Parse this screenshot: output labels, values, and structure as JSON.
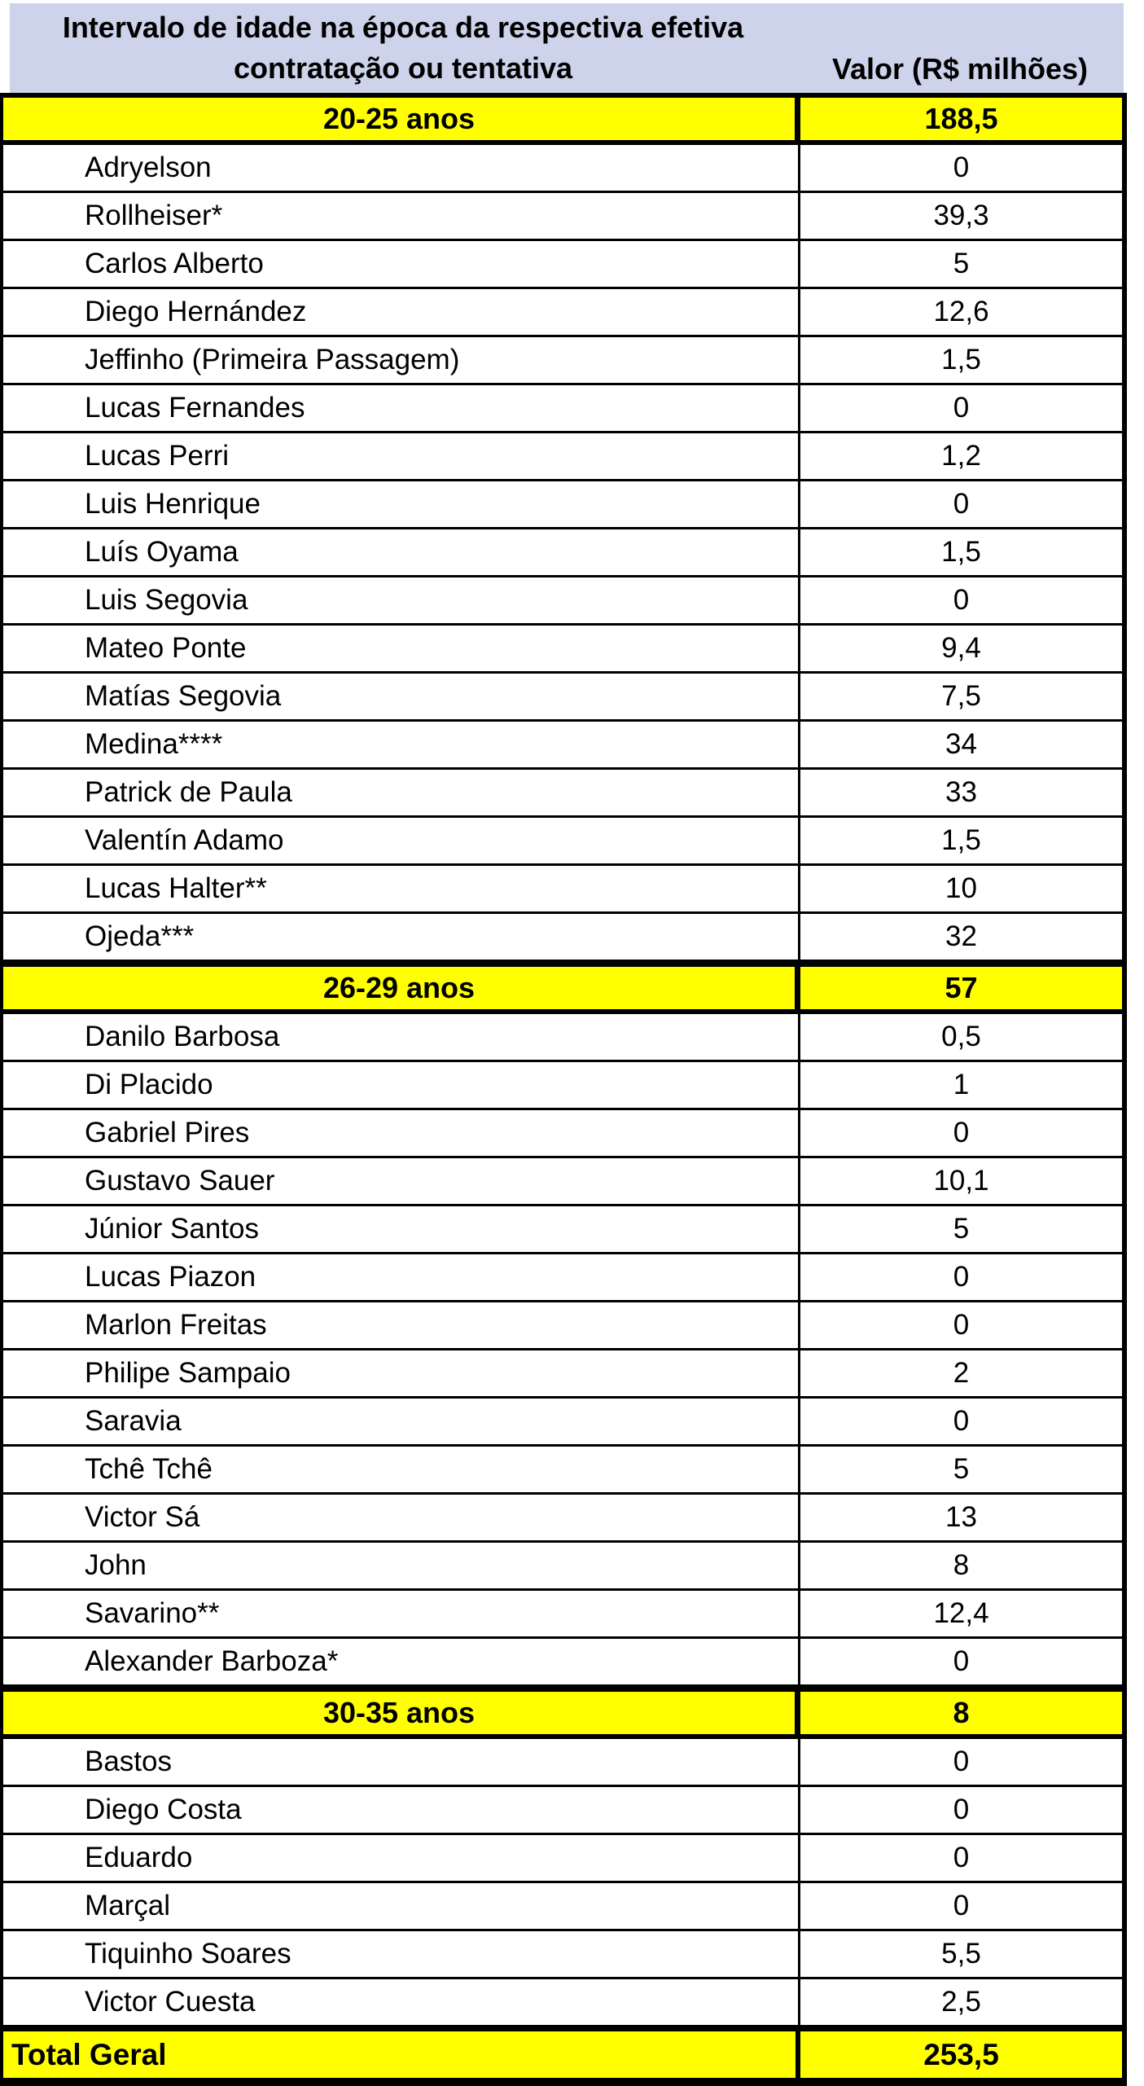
{
  "colors": {
    "header_bg": "#ccd3ea",
    "highlight_bg": "#ffff00",
    "row_bg": "#ffffff",
    "border": "#000000",
    "text": "#000000"
  },
  "chart_data": {
    "type": "table",
    "title": "",
    "columns": [
      "Intervalo de idade na época da respectiva efetiva contratação ou tentativa",
      "Valor (R$ milhões)"
    ],
    "sections": [
      {
        "label": "20-25 anos",
        "total": "188,5",
        "players": [
          {
            "name": "Adryelson",
            "value": "0"
          },
          {
            "name": "Rollheiser*",
            "value": "39,3"
          },
          {
            "name": "Carlos Alberto",
            "value": "5"
          },
          {
            "name": "Diego Hernández",
            "value": "12,6"
          },
          {
            "name": "Jeffinho (Primeira Passagem)",
            "value": "1,5"
          },
          {
            "name": "Lucas Fernandes",
            "value": "0"
          },
          {
            "name": "Lucas Perri",
            "value": "1,2"
          },
          {
            "name": "Luis Henrique",
            "value": "0"
          },
          {
            "name": "Luís Oyama",
            "value": "1,5"
          },
          {
            "name": "Luis Segovia",
            "value": "0"
          },
          {
            "name": "Mateo Ponte",
            "value": "9,4"
          },
          {
            "name": "Matías Segovia",
            "value": "7,5"
          },
          {
            "name": "Medina****",
            "value": "34"
          },
          {
            "name": "Patrick de Paula",
            "value": "33"
          },
          {
            "name": "Valentín Adamo",
            "value": "1,5"
          },
          {
            "name": "Lucas Halter**",
            "value": "10"
          },
          {
            "name": "Ojeda***",
            "value": "32"
          }
        ]
      },
      {
        "label": "26-29 anos",
        "total": "57",
        "players": [
          {
            "name": "Danilo Barbosa",
            "value": "0,5"
          },
          {
            "name": "Di Placido",
            "value": "1"
          },
          {
            "name": "Gabriel Pires",
            "value": "0"
          },
          {
            "name": "Gustavo Sauer",
            "value": "10,1"
          },
          {
            "name": "Júnior Santos",
            "value": "5"
          },
          {
            "name": "Lucas Piazon",
            "value": "0"
          },
          {
            "name": "Marlon Freitas",
            "value": "0"
          },
          {
            "name": "Philipe Sampaio",
            "value": "2"
          },
          {
            "name": "Saravia",
            "value": "0"
          },
          {
            "name": "Tchê Tchê",
            "value": "5"
          },
          {
            "name": "Victor Sá",
            "value": "13"
          },
          {
            "name": "John",
            "value": "8"
          },
          {
            "name": "Savarino**",
            "value": "12,4"
          },
          {
            "name": "Alexander Barboza*",
            "value": "0"
          }
        ]
      },
      {
        "label": "30-35 anos",
        "total": "8",
        "players": [
          {
            "name": "Bastos",
            "value": "0"
          },
          {
            "name": "Diego Costa",
            "value": "0"
          },
          {
            "name": "Eduardo",
            "value": "0"
          },
          {
            "name": "Marçal",
            "value": "0"
          },
          {
            "name": "Tiquinho Soares",
            "value": "5,5"
          },
          {
            "name": "Victor Cuesta",
            "value": "2,5"
          }
        ]
      }
    ],
    "grand_total": {
      "label": "Total Geral",
      "value": "253,5"
    }
  }
}
